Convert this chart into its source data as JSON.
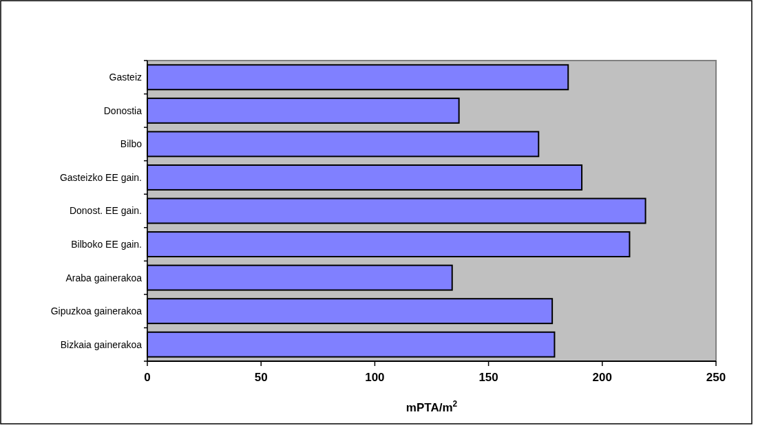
{
  "chart_data": {
    "type": "bar",
    "orientation": "horizontal",
    "xlabel": "mPTA/m$^{2}$",
    "categories": [
      "Gasteiz",
      "Donostia",
      "Bilbo",
      "Gasteizko EE gain.",
      "Donost. EE gain.",
      "Bilboko EE gain.",
      "Araba gainerakoa",
      "Gipuzkoa gainerakoa",
      "Bizkaia gainerakoa"
    ],
    "values": [
      185,
      137,
      172,
      191,
      219,
      212,
      134,
      178,
      179
    ],
    "color": "#8080ff",
    "xlim": [
      0,
      250
    ],
    "xticks": [
      0,
      50,
      100,
      150,
      200,
      250
    ],
    "grid": false
  }
}
